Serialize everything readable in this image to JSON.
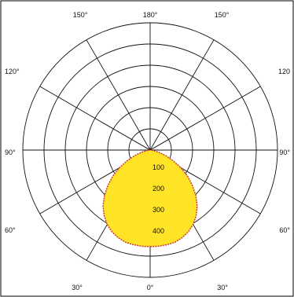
{
  "chart_data": {
    "type": "polar",
    "subtype": "luminous-intensity-distribution",
    "angle_labels": [
      {
        "deg": 150,
        "text": "150°",
        "pos": "top-left"
      },
      {
        "deg": 180,
        "text": "180°",
        "pos": "top"
      },
      {
        "deg": 150,
        "text": "150°",
        "pos": "top-right"
      },
      {
        "deg": 120,
        "text": "120°",
        "pos": "left"
      },
      {
        "deg": 120,
        "text": "120",
        "pos": "right"
      },
      {
        "deg": 90,
        "text": "90°",
        "pos": "left"
      },
      {
        "deg": 90,
        "text": "90°",
        "pos": "right"
      },
      {
        "deg": 60,
        "text": "60°",
        "pos": "left"
      },
      {
        "deg": 60,
        "text": "60°",
        "pos": "right"
      },
      {
        "deg": 30,
        "text": "30°",
        "pos": "bottom-left"
      },
      {
        "deg": 0,
        "text": "0°",
        "pos": "bottom"
      },
      {
        "deg": 30,
        "text": "30°",
        "pos": "bottom-right"
      }
    ],
    "radial_ticks": [
      100,
      200,
      300,
      400
    ],
    "rings": [
      100,
      200,
      300,
      400,
      500,
      600
    ],
    "r_max": 600,
    "series": [
      {
        "angles": [
          0,
          5,
          10,
          15,
          20,
          25,
          30,
          35,
          40,
          45,
          50,
          55,
          60,
          65,
          70,
          75,
          80,
          85,
          90
        ],
        "values": [
          455,
          455,
          453,
          450,
          440,
          425,
          405,
          378,
          345,
          305,
          260,
          215,
          168,
          120,
          80,
          45,
          20,
          6,
          0
        ],
        "fill": "#ffe326",
        "stroke": "#c8322a"
      }
    ],
    "grid": true
  }
}
